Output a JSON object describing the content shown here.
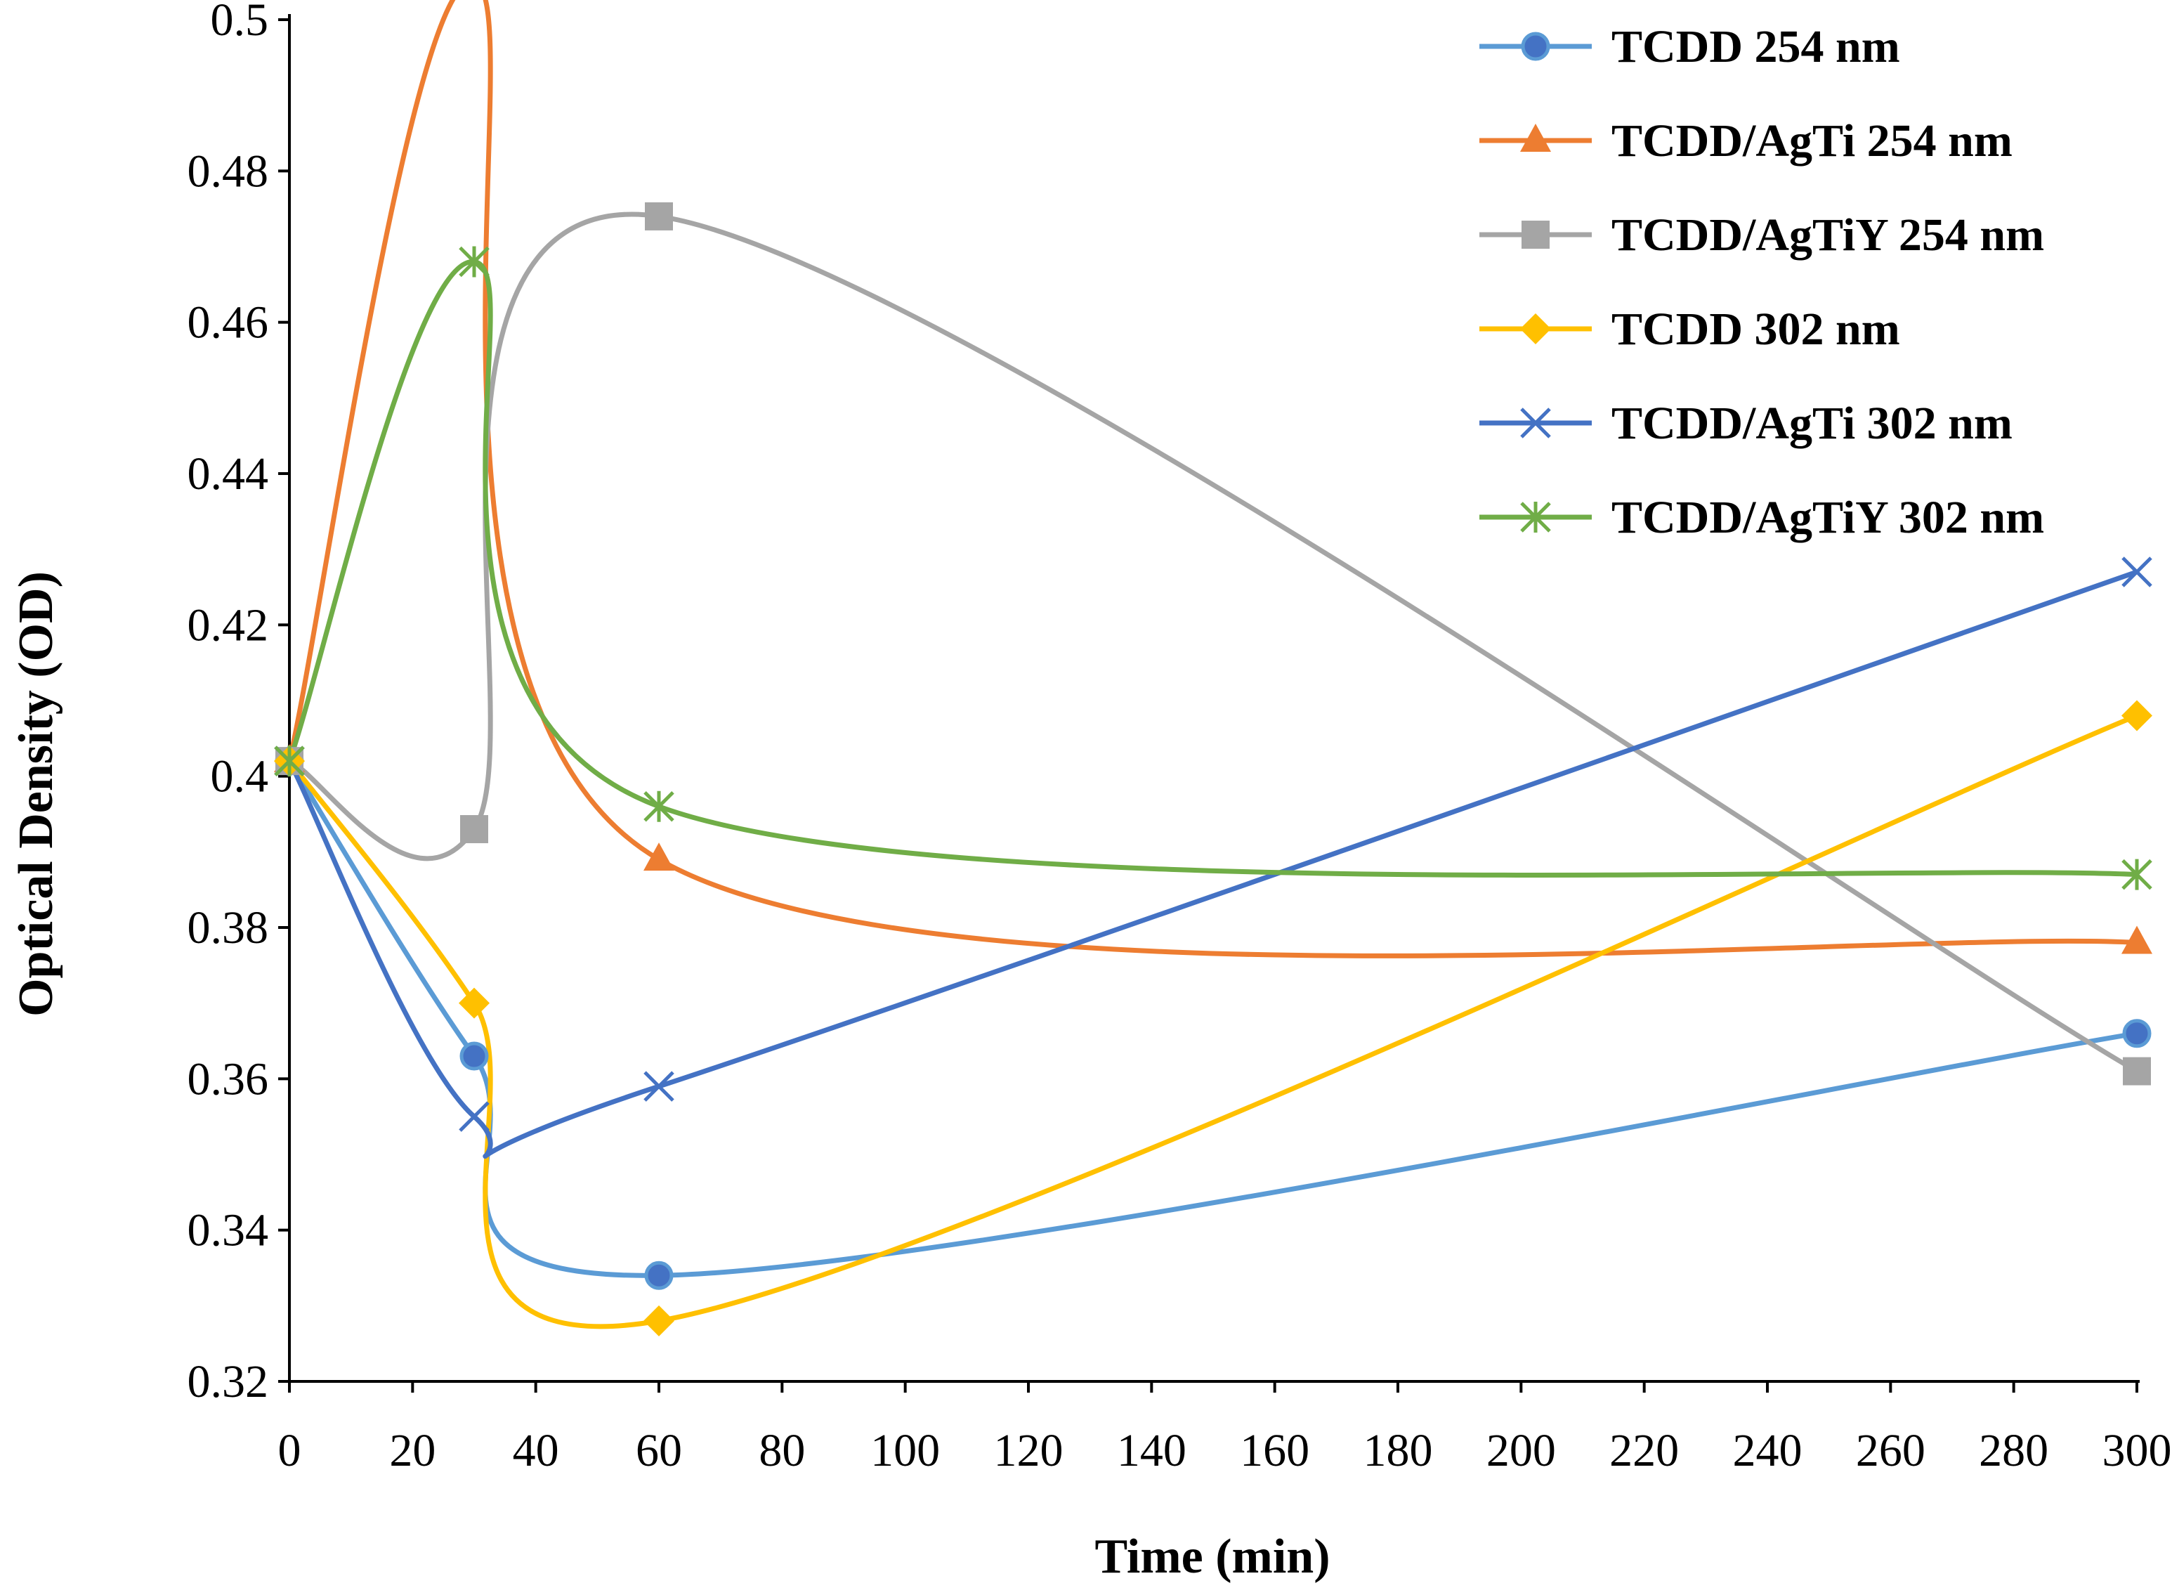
{
  "chart_data": {
    "type": "line",
    "title": "",
    "xlabel": "Time (min)",
    "ylabel": "Optical Density (OD)",
    "xlim": [
      0,
      300
    ],
    "ylim": [
      0.32,
      0.5
    ],
    "x_ticks": [
      0,
      20,
      40,
      60,
      80,
      100,
      120,
      140,
      160,
      180,
      200,
      220,
      240,
      260,
      280,
      300
    ],
    "y_ticks": [
      0.32,
      0.34,
      0.36,
      0.38,
      0.4,
      0.42,
      0.44,
      0.46,
      0.48,
      0.5
    ],
    "x_tick_labels": [
      "0",
      "20",
      "40",
      "60",
      "80",
      "100",
      "120",
      "140",
      "160",
      "180",
      "200",
      "220",
      "240",
      "260",
      "280",
      "300"
    ],
    "y_tick_labels": [
      "0.32",
      "0.34",
      "0.36",
      "0.38",
      "0.4",
      "0.42",
      "0.44",
      "0.46",
      "0.48",
      "0.5"
    ],
    "grid": false,
    "smooth": true,
    "legend_position": "top-right",
    "x": [
      0,
      30,
      60,
      300
    ],
    "series": [
      {
        "name": "TCDD 254 nm",
        "values": [
          0.402,
          0.363,
          0.334,
          0.366
        ],
        "color": "#5B9BD5",
        "marker": "circle"
      },
      {
        "name": "TCDD/AgTi 254 nm",
        "values": [
          0.402,
          0.505,
          0.389,
          0.378
        ],
        "color": "#ED7D31",
        "marker": "triangle"
      },
      {
        "name": "TCDD/AgTiY 254 nm",
        "values": [
          0.402,
          0.393,
          0.474,
          0.361
        ],
        "color": "#A5A5A5",
        "marker": "square"
      },
      {
        "name": "TCDD 302 nm",
        "values": [
          0.402,
          0.37,
          0.328,
          0.408
        ],
        "color": "#FFC000",
        "marker": "diamond"
      },
      {
        "name": "TCDD/AgTi 302 nm",
        "values": [
          0.402,
          0.355,
          0.359,
          0.427
        ],
        "color": "#4472C4",
        "marker": "x"
      },
      {
        "name": "TCDD/AgTiY 302 nm",
        "values": [
          0.402,
          0.468,
          0.396,
          0.387
        ],
        "color": "#70AD47",
        "marker": "star"
      }
    ]
  }
}
